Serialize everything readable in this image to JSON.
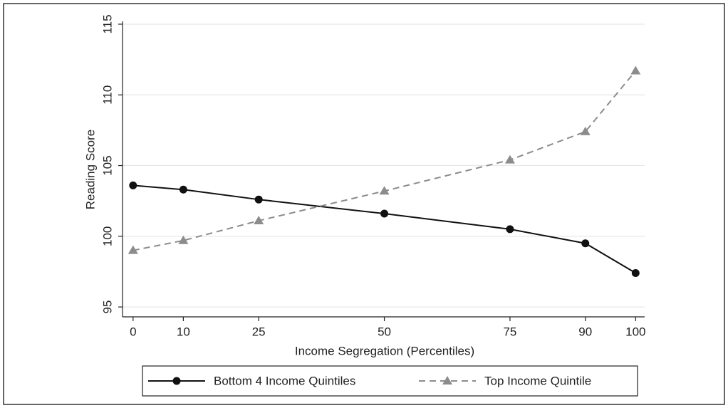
{
  "chart_data": {
    "type": "line",
    "x_label": "Income Segregation (Percentiles)",
    "y_label": "Reading Score",
    "x": [
      0,
      10,
      25,
      50,
      75,
      90,
      100
    ],
    "series": [
      {
        "name": "Bottom 4 Income Quintiles",
        "color": "#111111",
        "marker": "circle",
        "dash": false,
        "values": [
          103.6,
          103.3,
          102.6,
          101.6,
          100.5,
          99.5,
          97.4
        ]
      },
      {
        "name": "Top Income Quintile",
        "color": "#8c8c8c",
        "marker": "triangle",
        "dash": true,
        "values": [
          99.0,
          99.7,
          101.1,
          103.2,
          105.4,
          107.4,
          111.7
        ]
      }
    ],
    "xlim": [
      -2.1,
      101.8
    ],
    "xticks": [
      0,
      10,
      25,
      50,
      75,
      90,
      100
    ],
    "ylim": [
      94.3,
      115.2
    ],
    "yticks": [
      95,
      100,
      105,
      110,
      115
    ],
    "grid": true,
    "legend": "bottom"
  }
}
